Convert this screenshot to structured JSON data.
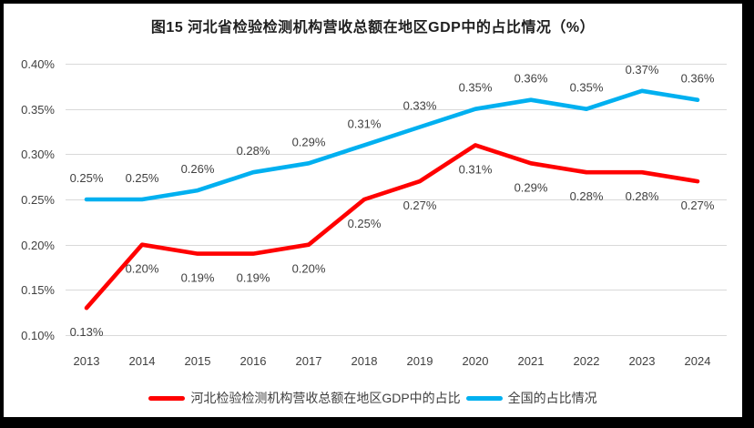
{
  "title": "图15 河北省检验检测机构营收总额在地区GDP中的占比情况（%）",
  "colors": {
    "hebei_line": "#FF0000",
    "national_line": "#00B0F0",
    "gridline": "#D9D9D9",
    "label_text": "#404040",
    "title_text": "#1F1F1F",
    "frame_border": "#000000",
    "background": "#FFFFFF"
  },
  "chart_data": {
    "type": "line",
    "title": "图15 河北省检验检测机构营收总额在地区GDP中的占比情况（%）",
    "categories": [
      "2013",
      "2014",
      "2015",
      "2016",
      "2017",
      "2018",
      "2019",
      "2020",
      "2021",
      "2022",
      "2023",
      "2024"
    ],
    "series": [
      {
        "name": "河北检验检测机构营收总额在地区GDP中的占比",
        "color": "#FF0000",
        "values": [
          0.13,
          0.2,
          0.19,
          0.19,
          0.2,
          0.25,
          0.27,
          0.31,
          0.29,
          0.28,
          0.28,
          0.27
        ],
        "data_labels": [
          "0.13%",
          "0.20%",
          "0.19%",
          "0.19%",
          "0.20%",
          "0.25%",
          "0.27%",
          "0.31%",
          "0.29%",
          "0.28%",
          "0.28%",
          "0.27%"
        ],
        "label_position": "below"
      },
      {
        "name": "全国的占比情况",
        "color": "#00B0F0",
        "values": [
          0.25,
          0.25,
          0.26,
          0.28,
          0.29,
          0.31,
          0.33,
          0.35,
          0.36,
          0.35,
          0.37,
          0.36
        ],
        "data_labels": [
          "0.25%",
          "0.25%",
          "0.26%",
          "0.28%",
          "0.29%",
          "0.31%",
          "0.33%",
          "0.35%",
          "0.36%",
          "0.35%",
          "0.37%",
          "0.36%"
        ],
        "label_position": "above"
      }
    ],
    "y_axis": {
      "min": 0.1,
      "max": 0.4,
      "step": 0.05,
      "tick_labels": [
        "0.40%",
        "0.35%",
        "0.30%",
        "0.25%",
        "0.20%",
        "0.15%",
        "0.10%"
      ]
    },
    "grid": true,
    "legend_position": "bottom"
  },
  "legend": {
    "items": [
      {
        "label": "河北检验检测机构营收总额在地区GDP中的占比",
        "color": "#FF0000"
      },
      {
        "label": "全国的占比情况",
        "color": "#00B0F0"
      }
    ]
  }
}
